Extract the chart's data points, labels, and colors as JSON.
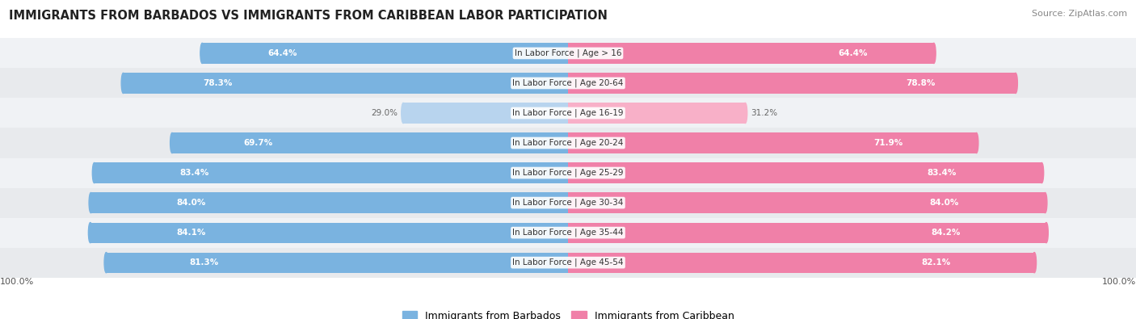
{
  "title": "IMMIGRANTS FROM BARBADOS VS IMMIGRANTS FROM CARIBBEAN LABOR PARTICIPATION",
  "source": "Source: ZipAtlas.com",
  "categories": [
    "In Labor Force | Age > 16",
    "In Labor Force | Age 20-64",
    "In Labor Force | Age 16-19",
    "In Labor Force | Age 20-24",
    "In Labor Force | Age 25-29",
    "In Labor Force | Age 30-34",
    "In Labor Force | Age 35-44",
    "In Labor Force | Age 45-54"
  ],
  "barbados_values": [
    64.4,
    78.3,
    29.0,
    69.7,
    83.4,
    84.0,
    84.1,
    81.3
  ],
  "caribbean_values": [
    64.4,
    78.8,
    31.2,
    71.9,
    83.4,
    84.0,
    84.2,
    82.1
  ],
  "barbados_color": "#7ab3e0",
  "caribbean_color": "#f080a8",
  "barbados_color_light": "#b8d4ee",
  "caribbean_color_light": "#f8b0c8",
  "row_bg_even": "#f0f2f5",
  "row_bg_odd": "#e8eaed",
  "max_value": 100.0,
  "legend_barbados": "Immigrants from Barbados",
  "legend_caribbean": "Immigrants from Caribbean",
  "title_fontsize": 10.5,
  "source_fontsize": 8,
  "label_fontsize": 7.5,
  "value_fontsize": 7.5
}
